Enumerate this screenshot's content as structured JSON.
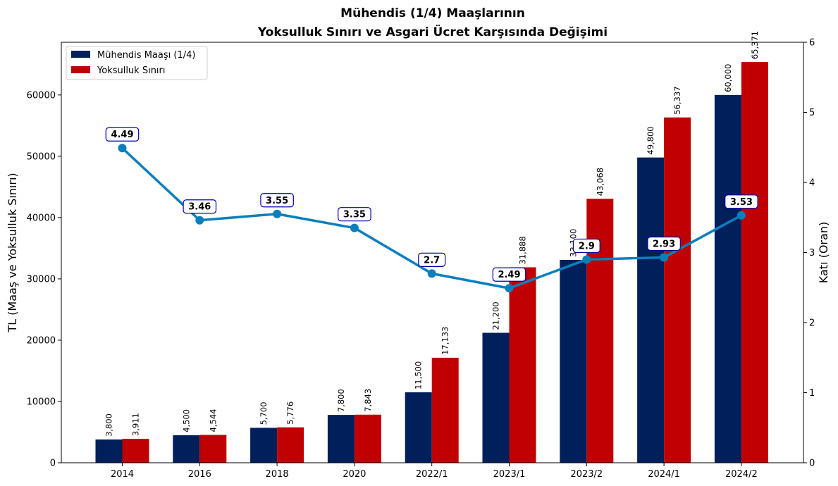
{
  "chart_data": {
    "type": "bar",
    "title_line1": "Mühendis (1/4) Maaşlarının",
    "title_line2": "Yoksulluk Sınırı ve Asgari Ücret Karşısında Değişimi",
    "xlabel": "",
    "ylabel": "TL (Maaş ve Yoksulluk Sınırı)",
    "y2label": "Katı (Oran)",
    "categories": [
      "2014",
      "2016",
      "2018",
      "2020",
      "2022/1",
      "2023/1",
      "2023/2",
      "2024/1",
      "2024/2"
    ],
    "series": [
      {
        "name": "Mühendis Maaşı (1/4)",
        "type": "bar",
        "axis": "left",
        "color": "#001f5b",
        "values": [
          3800,
          4500,
          5700,
          7800,
          11500,
          21200,
          33100,
          49800,
          60000
        ],
        "labels": [
          "3,800",
          "4,500",
          "5,700",
          "7,800",
          "11,500",
          "21,200",
          "33,100",
          "49,800",
          "60,000"
        ]
      },
      {
        "name": "Yoksulluk Sınırı",
        "type": "bar",
        "axis": "left",
        "color": "#c00000",
        "values": [
          3911,
          4544,
          5776,
          7843,
          17133,
          31888,
          43068,
          56337,
          65371
        ],
        "labels": [
          "3,911",
          "4,544",
          "5,776",
          "7,843",
          "17,133",
          "31,888",
          "43,068",
          "56,337",
          "65,371"
        ]
      },
      {
        "type": "line",
        "axis": "right",
        "color": "#0a7fbd",
        "values": [
          4.49,
          3.46,
          3.55,
          3.35,
          2.7,
          2.49,
          2.9,
          2.93,
          3.53
        ],
        "labels": [
          "4.49",
          "3.46",
          "3.55",
          "3.35",
          "2.7",
          "2.49",
          "2.9",
          "2.93",
          "3.53"
        ]
      }
    ],
    "ylim": [
      0,
      68600
    ],
    "yticks": [
      0,
      10000,
      20000,
      30000,
      40000,
      50000,
      60000
    ],
    "ytick_labels": [
      "0",
      "10000",
      "20000",
      "30000",
      "40000",
      "50000",
      "60000"
    ],
    "y2lim": [
      0,
      6
    ],
    "y2ticks": [
      0,
      1,
      2,
      3,
      4,
      5,
      6
    ],
    "y2tick_labels": [
      "0",
      "1",
      "2",
      "3",
      "4",
      "5",
      "6"
    ],
    "legend_position": "top-left",
    "grid": false
  }
}
